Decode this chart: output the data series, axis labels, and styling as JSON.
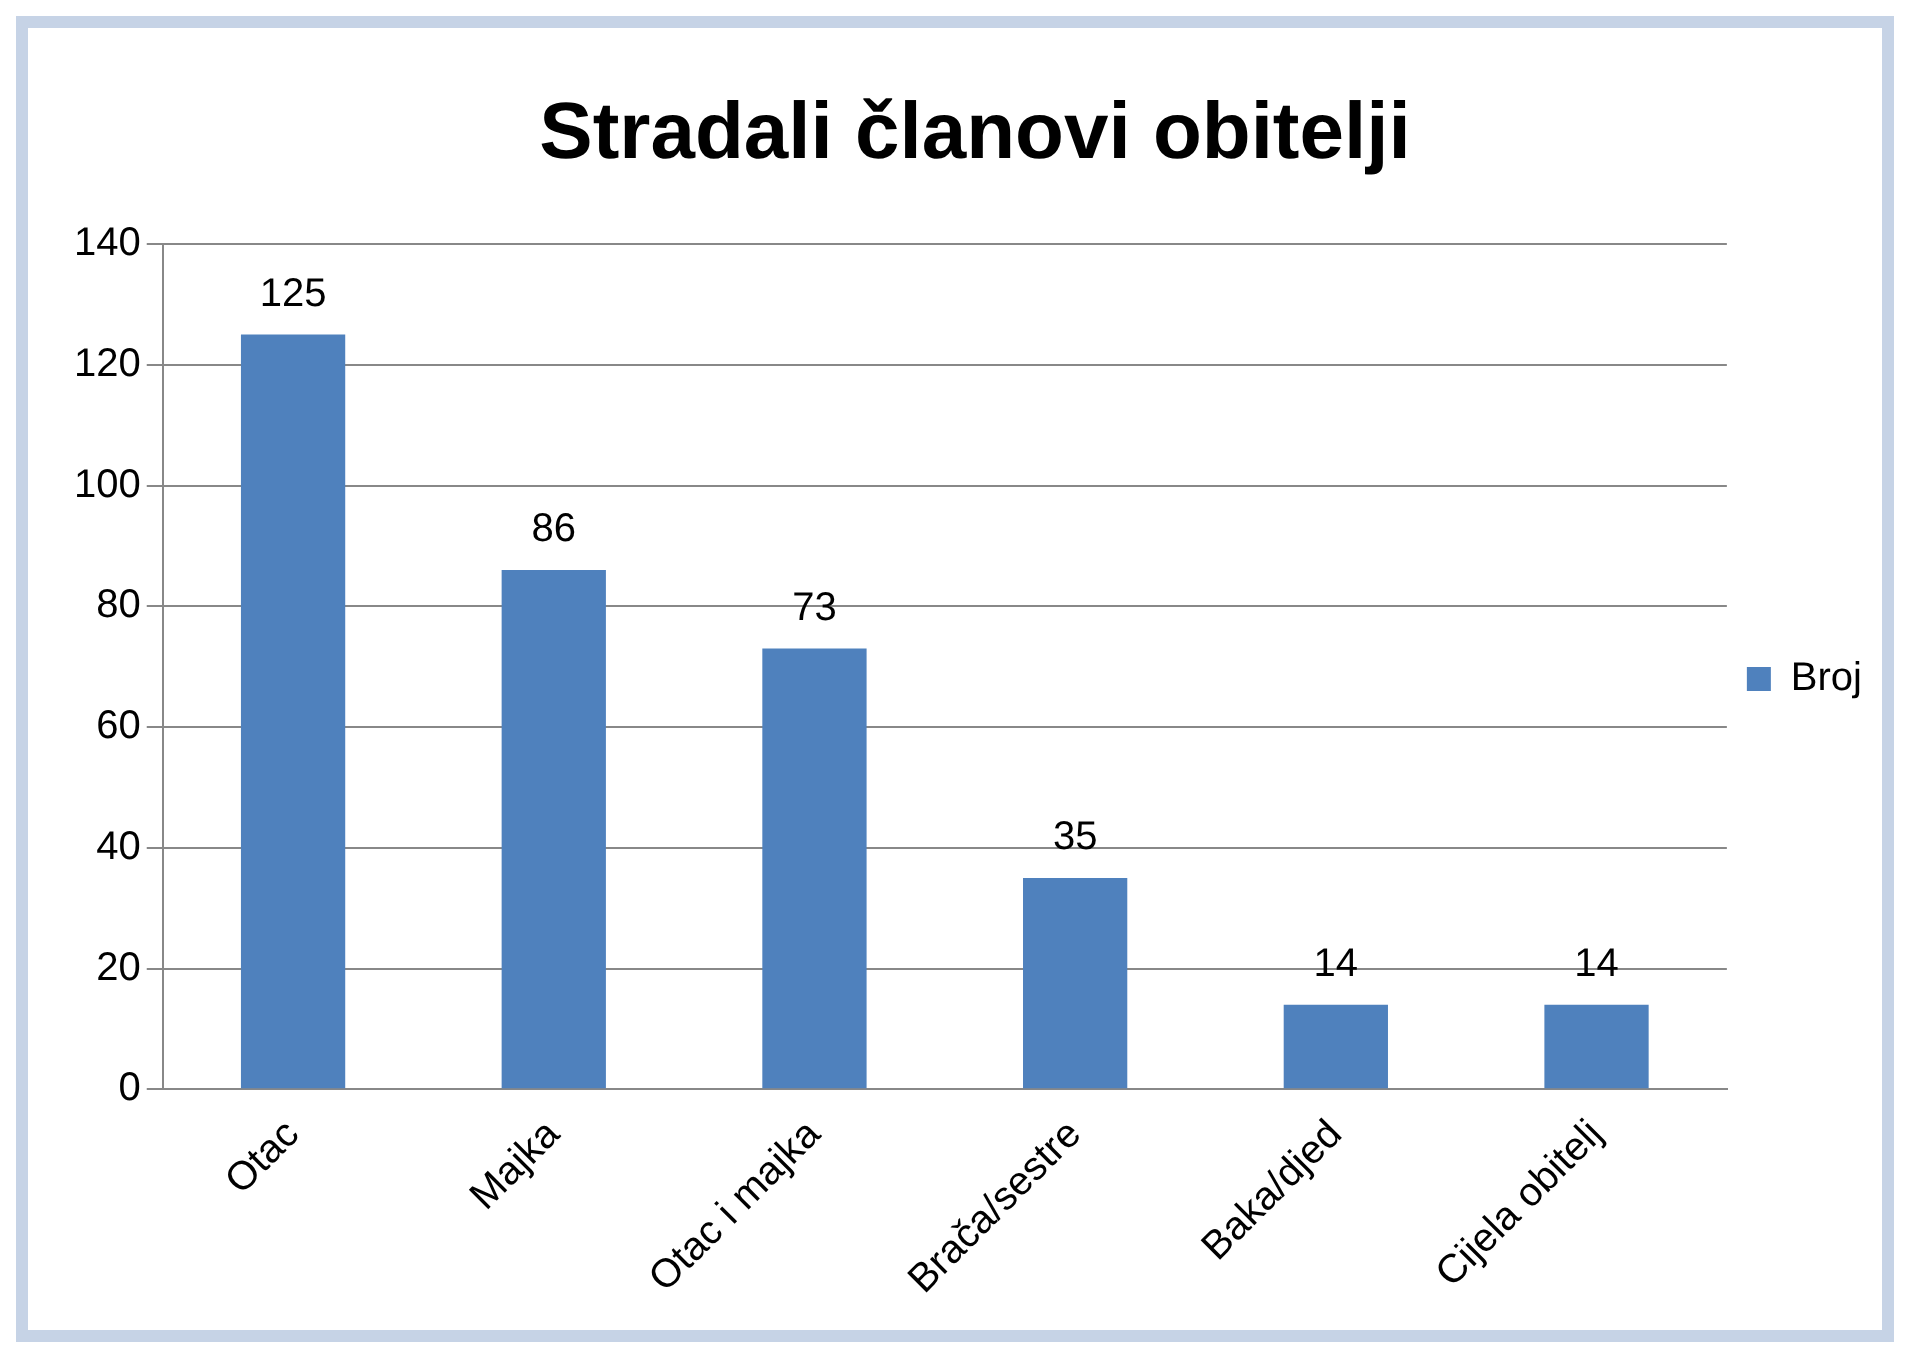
{
  "chart_data": {
    "type": "bar",
    "title": "Stradali članovi obitelji",
    "categories": [
      "Otac",
      "Majka",
      "Otac i majka",
      "Brača/sestre",
      "Baka/djed",
      "Cijela obitelj"
    ],
    "series": [
      {
        "name": "Broj",
        "color": "#4f81bd",
        "values": [
          125,
          86,
          73,
          35,
          14,
          14
        ]
      }
    ],
    "ylim": [
      0,
      140
    ],
    "yticks": [
      0,
      20,
      40,
      60,
      80,
      100,
      120,
      140
    ],
    "grid": "y",
    "legend": "right",
    "data_labels": true
  }
}
